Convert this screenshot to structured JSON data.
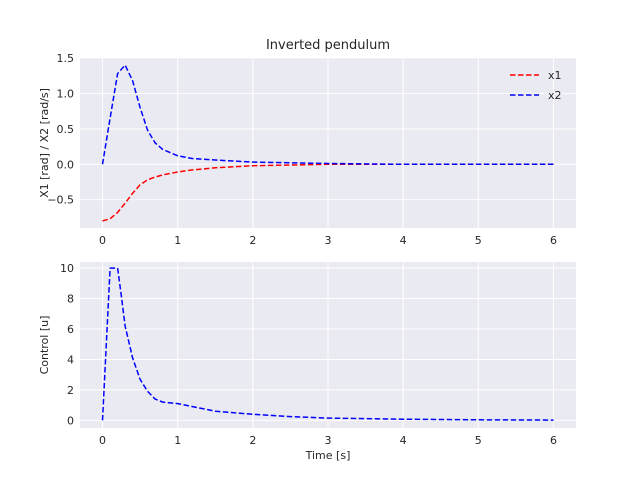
{
  "chart_data": [
    {
      "type": "line",
      "title": "Inverted pendulum",
      "xlabel": "",
      "ylabel": "X1 [rad] / X2 [rad/s]",
      "xlim": [
        -0.3,
        6.3
      ],
      "ylim": [
        -0.9,
        1.5
      ],
      "xticks": [
        "0",
        "1",
        "2",
        "3",
        "4",
        "5",
        "6"
      ],
      "yticks": [
        "−0.5",
        "0.0",
        "0.5",
        "1.0",
        "1.5"
      ],
      "grid": true,
      "legend_position": "top-right",
      "series": [
        {
          "name": "x1",
          "color": "#ff0000",
          "x": [
            0,
            0.1,
            0.2,
            0.3,
            0.4,
            0.5,
            0.6,
            0.7,
            0.8,
            1.0,
            1.2,
            1.5,
            2.0,
            2.5,
            3.0,
            4.0,
            5.0,
            6.0
          ],
          "y": [
            -0.8,
            -0.77,
            -0.68,
            -0.55,
            -0.41,
            -0.29,
            -0.22,
            -0.18,
            -0.15,
            -0.11,
            -0.08,
            -0.05,
            -0.02,
            -0.01,
            0.0,
            0.0,
            0.0,
            0.0
          ]
        },
        {
          "name": "x2",
          "color": "#0000ff",
          "x": [
            0,
            0.1,
            0.2,
            0.3,
            0.4,
            0.5,
            0.6,
            0.7,
            0.8,
            1.0,
            1.2,
            1.5,
            2.0,
            2.5,
            3.0,
            4.0,
            5.0,
            6.0
          ],
          "y": [
            0.0,
            0.65,
            1.28,
            1.4,
            1.18,
            0.8,
            0.48,
            0.3,
            0.21,
            0.12,
            0.08,
            0.06,
            0.03,
            0.02,
            0.01,
            0.0,
            0.0,
            0.0
          ]
        }
      ]
    },
    {
      "type": "line",
      "title": "",
      "xlabel": "Time [s]",
      "ylabel": "Control [u]",
      "xlim": [
        -0.3,
        6.3
      ],
      "ylim": [
        -0.5,
        10.4
      ],
      "xticks": [
        "0",
        "1",
        "2",
        "3",
        "4",
        "5",
        "6"
      ],
      "yticks": [
        "0",
        "2",
        "4",
        "6",
        "8",
        "10"
      ],
      "grid": true,
      "series": [
        {
          "color": "#0000ff",
          "x": [
            0,
            0.1,
            0.2,
            0.25,
            0.3,
            0.4,
            0.5,
            0.6,
            0.7,
            0.8,
            1.0,
            1.5,
            2.0,
            2.5,
            3.0,
            4.0,
            5.0,
            6.0
          ],
          "y": [
            0.0,
            10.0,
            10.0,
            8.2,
            6.2,
            4.1,
            2.7,
            1.9,
            1.4,
            1.2,
            1.1,
            0.6,
            0.4,
            0.25,
            0.15,
            0.08,
            0.04,
            0.02
          ]
        }
      ]
    }
  ]
}
